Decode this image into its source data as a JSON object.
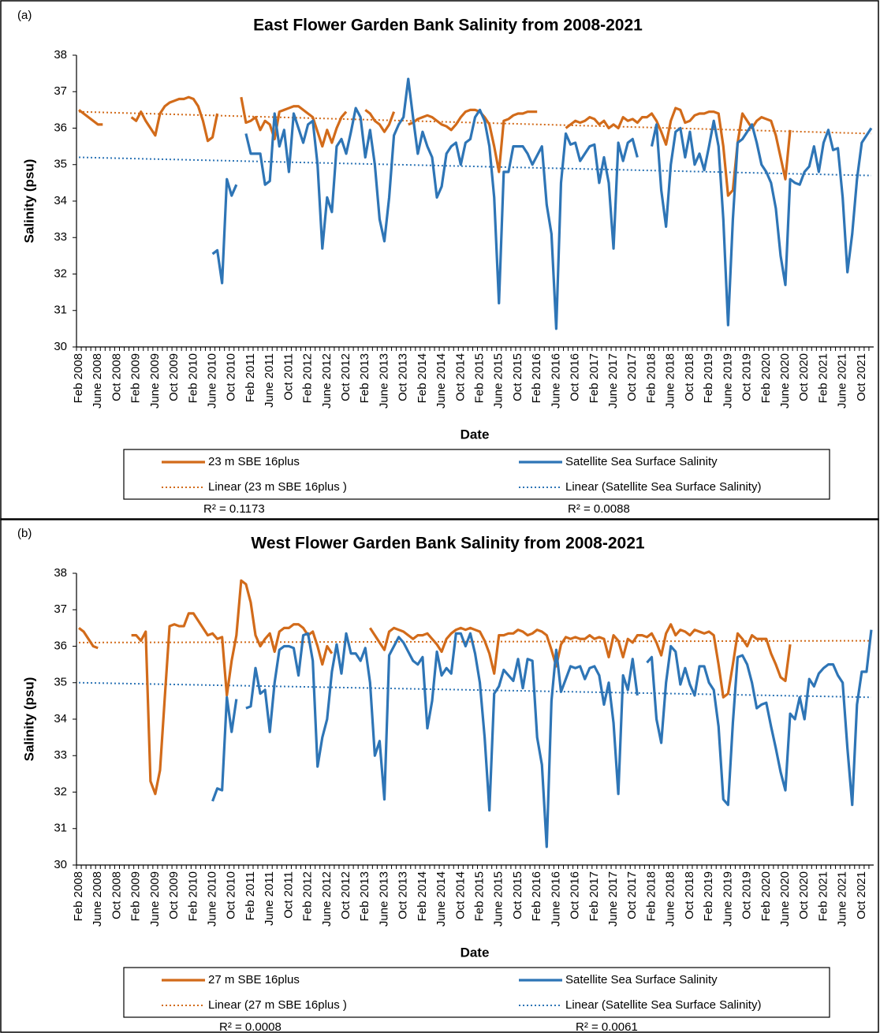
{
  "chart_data": [
    {
      "type": "line",
      "panel_label": "(a)",
      "title": "East Flower Garden Bank Salinity from 2008-2021",
      "x_label": "Date",
      "y_label": "Salinity (psu)",
      "ylim": [
        30,
        38
      ],
      "yticks": [
        30,
        31,
        32,
        33,
        34,
        35,
        36,
        37,
        38
      ],
      "categories": [
        "Feb 2008",
        null,
        null,
        null,
        "June 2008",
        null,
        null,
        null,
        "Oct 2008",
        null,
        null,
        null,
        "Feb 2009",
        null,
        null,
        null,
        "June 2009",
        null,
        null,
        null,
        "Oct 2009",
        null,
        null,
        null,
        "Feb 2010",
        null,
        null,
        null,
        "June 2010",
        null,
        null,
        null,
        "Oct 2010",
        null,
        null,
        null,
        "Feb 2011",
        null,
        null,
        null,
        "June 2011",
        null,
        null,
        null,
        "Oct 2011",
        null,
        null,
        null,
        "Feb 2012",
        null,
        null,
        null,
        "June 2012",
        null,
        null,
        null,
        "Oct 2012",
        null,
        null,
        null,
        "Feb 2013",
        null,
        null,
        null,
        "June 2013",
        null,
        null,
        null,
        "Oct 2013",
        null,
        null,
        null,
        "Feb 2014",
        null,
        null,
        null,
        "June 2014",
        null,
        null,
        null,
        "Oct 2014",
        null,
        null,
        null,
        "Feb 2015",
        null,
        null,
        null,
        "June 2015",
        null,
        null,
        null,
        "Oct 2015",
        null,
        null,
        null,
        "Feb 2016",
        null,
        null,
        null,
        "June 2016",
        null,
        null,
        null,
        "Oct 2016",
        null,
        null,
        null,
        "Feb 2017",
        null,
        null,
        null,
        "June 2017",
        null,
        null,
        null,
        "Oct 2017",
        null,
        null,
        null,
        "Feb 2018",
        null,
        null,
        null,
        "June 2018",
        null,
        null,
        null,
        "Oct 2018",
        null,
        null,
        null,
        "Feb 2019",
        null,
        null,
        null,
        "June 2019",
        null,
        null,
        null,
        "Oct 2019",
        null,
        null,
        null,
        "Feb 2020",
        null,
        null,
        null,
        "June 2020",
        null,
        null,
        null,
        "Oct 2020",
        null,
        null,
        null,
        "Feb 2021",
        null,
        null,
        null,
        "June 2021",
        null,
        null,
        null,
        "Oct 2021",
        null,
        null
      ],
      "series": [
        {
          "name": "23 m SBE 16plus",
          "color": "#d26b1a",
          "values": [
            36.5,
            36.4,
            36.3,
            36.2,
            36.1,
            36.1,
            null,
            null,
            null,
            null,
            null,
            36.3,
            36.2,
            36.45,
            36.2,
            36.0,
            35.8,
            36.4,
            36.6,
            36.7,
            36.75,
            36.8,
            36.8,
            36.85,
            36.8,
            36.6,
            36.2,
            35.65,
            35.75,
            36.4,
            null,
            null,
            null,
            null,
            36.85,
            36.15,
            36.2,
            36.3,
            35.95,
            36.2,
            36.1,
            35.7,
            36.45,
            36.5,
            36.55,
            36.6,
            36.6,
            36.5,
            36.4,
            36.3,
            35.9,
            35.5,
            35.95,
            35.6,
            36.0,
            36.3,
            36.45,
            null,
            null,
            null,
            36.5,
            36.4,
            36.2,
            36.1,
            35.9,
            36.1,
            36.45,
            null,
            null,
            36.1,
            36.15,
            36.25,
            36.3,
            36.35,
            36.3,
            36.2,
            36.1,
            36.05,
            35.95,
            36.1,
            36.3,
            36.45,
            36.5,
            36.5,
            36.45,
            36.3,
            36.1,
            35.5,
            34.8,
            36.2,
            36.25,
            36.35,
            36.4,
            36.4,
            36.45,
            36.45,
            36.45,
            null,
            null,
            null,
            null,
            null,
            36.0,
            36.1,
            36.2,
            36.15,
            36.2,
            36.3,
            36.25,
            36.1,
            36.2,
            36.0,
            36.1,
            36.0,
            36.3,
            36.2,
            36.25,
            36.15,
            36.3,
            36.3,
            36.4,
            36.2,
            35.9,
            35.55,
            36.2,
            36.55,
            36.5,
            36.15,
            36.2,
            36.35,
            36.4,
            36.4,
            36.45,
            36.45,
            36.4,
            35.5,
            34.15,
            34.3,
            35.6,
            36.4,
            36.2,
            36.0,
            36.2,
            36.3,
            36.25,
            36.2,
            35.8,
            35.2,
            34.6,
            35.95,
            null,
            null,
            null,
            null,
            null,
            null,
            null,
            null,
            null,
            null,
            null,
            null,
            null,
            null,
            null,
            null,
            null
          ]
        },
        {
          "name": "Satellite Sea Surface Salinity",
          "color": "#2e75b6",
          "values": [
            null,
            null,
            null,
            null,
            null,
            null,
            null,
            null,
            null,
            null,
            null,
            null,
            null,
            null,
            null,
            null,
            null,
            null,
            null,
            null,
            null,
            null,
            null,
            null,
            null,
            null,
            null,
            null,
            32.55,
            32.65,
            31.75,
            34.6,
            34.15,
            34.45,
            null,
            35.85,
            35.3,
            35.3,
            35.3,
            34.45,
            34.55,
            36.4,
            35.5,
            35.95,
            34.8,
            36.4,
            36.0,
            35.6,
            36.1,
            36.2,
            35.0,
            32.7,
            34.1,
            33.7,
            35.5,
            35.7,
            35.3,
            35.9,
            36.55,
            36.3,
            35.2,
            35.95,
            35.0,
            33.5,
            32.9,
            34.1,
            35.8,
            36.1,
            36.3,
            37.35,
            36.3,
            35.3,
            35.9,
            35.5,
            35.2,
            34.1,
            34.4,
            35.3,
            35.5,
            35.6,
            35.0,
            35.6,
            35.7,
            36.3,
            36.5,
            36.2,
            35.5,
            34.1,
            31.2,
            34.8,
            34.8,
            35.5,
            35.5,
            35.5,
            35.3,
            35.0,
            35.25,
            35.5,
            33.9,
            33.1,
            30.5,
            34.5,
            35.85,
            35.55,
            35.6,
            35.1,
            35.3,
            35.5,
            35.55,
            34.5,
            35.2,
            34.5,
            32.7,
            35.6,
            35.1,
            35.6,
            35.7,
            35.2,
            null,
            null,
            35.5,
            36.1,
            34.3,
            33.3,
            35.0,
            35.9,
            36.0,
            35.2,
            35.9,
            35.0,
            35.3,
            34.85,
            35.5,
            36.2,
            35.5,
            33.5,
            30.6,
            33.5,
            35.6,
            35.7,
            35.9,
            36.1,
            35.6,
            35.0,
            34.8,
            34.5,
            33.8,
            32.5,
            31.7,
            34.6,
            34.5,
            34.45,
            34.8,
            34.95,
            35.5,
            34.8,
            35.6,
            35.95,
            35.4,
            35.45,
            34.1,
            32.05,
            33.1,
            34.6,
            35.6,
            35.8,
            36.0
          ]
        }
      ],
      "trendlines": [
        {
          "name": "Linear (23 m SBE 16plus )",
          "color": "#d26b1a",
          "start": 36.45,
          "end": 35.85,
          "r2": "R² = 0.1173"
        },
        {
          "name": "Linear (Satellite Sea Surface Salinity)",
          "color": "#2e75b6",
          "start": 35.2,
          "end": 34.7,
          "r2": "R² = 0.0088"
        }
      ]
    },
    {
      "type": "line",
      "panel_label": "(b)",
      "title": "West Flower Garden Bank Salinity from 2008-2021",
      "x_label": "Date",
      "y_label": "Salinity (psu)",
      "ylim": [
        30,
        38
      ],
      "yticks": [
        30,
        31,
        32,
        33,
        34,
        35,
        36,
        37,
        38
      ],
      "categories": [
        "Feb 2008",
        null,
        null,
        null,
        "June 2008",
        null,
        null,
        null,
        "Oct 2008",
        null,
        null,
        null,
        "Feb 2009",
        null,
        null,
        null,
        "June 2009",
        null,
        null,
        null,
        "Oct 2009",
        null,
        null,
        null,
        "Feb 2010",
        null,
        null,
        null,
        "June 2010",
        null,
        null,
        null,
        "Oct 2010",
        null,
        null,
        null,
        "Feb 2011",
        null,
        null,
        null,
        "June 2011",
        null,
        null,
        null,
        "Oct 2011",
        null,
        null,
        null,
        "Feb 2012",
        null,
        null,
        null,
        "June 2012",
        null,
        null,
        null,
        "Oct 2012",
        null,
        null,
        null,
        "Feb 2013",
        null,
        null,
        null,
        "June 2013",
        null,
        null,
        null,
        "Oct 2013",
        null,
        null,
        null,
        "Feb 2014",
        null,
        null,
        null,
        "June 2014",
        null,
        null,
        null,
        "Oct 2014",
        null,
        null,
        null,
        "Feb 2015",
        null,
        null,
        null,
        "June 2015",
        null,
        null,
        null,
        "Oct 2015",
        null,
        null,
        null,
        "Feb 2016",
        null,
        null,
        null,
        "June 2016",
        null,
        null,
        null,
        "Oct 2016",
        null,
        null,
        null,
        "Feb 2017",
        null,
        null,
        null,
        "June 2017",
        null,
        null,
        null,
        "Oct 2017",
        null,
        null,
        null,
        "Feb 2018",
        null,
        null,
        null,
        "June 2018",
        null,
        null,
        null,
        "Oct 2018",
        null,
        null,
        null,
        "Feb 2019",
        null,
        null,
        null,
        "June 2019",
        null,
        null,
        null,
        "Oct 2019",
        null,
        null,
        null,
        "Feb 2020",
        null,
        null,
        null,
        "June 2020",
        null,
        null,
        null,
        "Oct 2020",
        null,
        null,
        null,
        "Feb 2021",
        null,
        null,
        null,
        "June 2021",
        null,
        null,
        null,
        "Oct 2021",
        null,
        null
      ],
      "series": [
        {
          "name": "27 m SBE 16plus",
          "color": "#d26b1a",
          "values": [
            36.5,
            36.4,
            36.2,
            36.0,
            35.95,
            null,
            null,
            null,
            null,
            null,
            null,
            36.3,
            36.3,
            36.15,
            36.4,
            32.3,
            31.95,
            32.6,
            34.6,
            36.55,
            36.6,
            36.55,
            36.55,
            36.9,
            36.9,
            36.7,
            36.5,
            36.3,
            36.35,
            36.2,
            36.25,
            34.65,
            35.6,
            36.3,
            37.8,
            37.7,
            37.2,
            36.3,
            36.0,
            36.2,
            36.35,
            35.85,
            36.4,
            36.5,
            36.5,
            36.6,
            36.6,
            36.5,
            36.3,
            36.4,
            36.0,
            35.5,
            36.0,
            35.8,
            null,
            null,
            null,
            null,
            null,
            null,
            null,
            36.5,
            36.3,
            36.1,
            35.9,
            36.4,
            36.5,
            36.45,
            36.4,
            36.3,
            36.2,
            36.3,
            36.3,
            36.35,
            36.2,
            36.05,
            35.85,
            36.2,
            36.35,
            36.45,
            36.5,
            36.45,
            36.5,
            36.45,
            36.4,
            36.15,
            35.8,
            35.25,
            36.3,
            36.3,
            36.35,
            36.35,
            36.45,
            36.4,
            36.3,
            36.35,
            36.45,
            36.4,
            36.3,
            35.9,
            35.45,
            36.05,
            36.25,
            36.2,
            36.25,
            36.2,
            36.2,
            36.3,
            36.2,
            36.25,
            36.2,
            35.7,
            36.3,
            36.15,
            35.7,
            36.2,
            36.1,
            36.3,
            36.3,
            36.25,
            36.35,
            36.1,
            35.75,
            36.35,
            36.6,
            36.3,
            36.45,
            36.4,
            36.3,
            36.45,
            36.4,
            36.35,
            36.4,
            36.3,
            35.5,
            34.6,
            34.7,
            35.5,
            36.35,
            36.2,
            36.0,
            36.3,
            36.2,
            36.2,
            36.2,
            35.8,
            35.5,
            35.15,
            35.05,
            36.05,
            null,
            null,
            null,
            null,
            null,
            null,
            null,
            null,
            null,
            null,
            null,
            null,
            null,
            null,
            null,
            null,
            null
          ]
        },
        {
          "name": "Satellite Sea Surface Salinity",
          "color": "#2e75b6",
          "values": [
            null,
            null,
            null,
            null,
            null,
            null,
            null,
            null,
            null,
            null,
            null,
            null,
            null,
            null,
            null,
            null,
            null,
            null,
            null,
            null,
            null,
            null,
            null,
            null,
            null,
            null,
            null,
            null,
            31.75,
            32.1,
            32.05,
            34.6,
            33.65,
            34.55,
            null,
            34.3,
            34.35,
            35.4,
            34.7,
            34.8,
            33.65,
            35.0,
            35.9,
            36.0,
            36.0,
            35.95,
            35.2,
            36.3,
            36.35,
            35.6,
            32.7,
            33.5,
            34.0,
            35.3,
            36.05,
            35.25,
            36.35,
            35.8,
            35.8,
            35.6,
            35.95,
            35.0,
            33.0,
            33.4,
            31.8,
            35.75,
            36.0,
            36.25,
            36.1,
            35.85,
            35.6,
            35.5,
            35.7,
            33.75,
            34.5,
            35.85,
            35.2,
            35.4,
            35.25,
            36.35,
            36.35,
            36.0,
            36.35,
            35.8,
            35.0,
            33.5,
            31.5,
            34.7,
            34.9,
            35.35,
            35.2,
            35.05,
            35.65,
            34.85,
            35.65,
            35.6,
            33.5,
            32.75,
            30.5,
            34.5,
            35.9,
            34.75,
            35.1,
            35.45,
            35.4,
            35.45,
            35.1,
            35.4,
            35.45,
            35.2,
            34.4,
            35.0,
            33.9,
            31.95,
            35.2,
            34.8,
            35.65,
            34.65,
            null,
            35.55,
            35.7,
            34.0,
            33.35,
            35.0,
            36.0,
            35.85,
            34.95,
            35.4,
            34.95,
            34.65,
            35.45,
            35.45,
            35.0,
            34.8,
            33.8,
            31.8,
            31.65,
            33.9,
            35.7,
            35.75,
            35.5,
            35.0,
            34.3,
            34.4,
            34.45,
            33.8,
            33.2,
            32.55,
            32.05,
            34.15,
            34.0,
            34.6,
            34.0,
            35.1,
            34.9,
            35.25,
            35.4,
            35.5,
            35.5,
            35.2,
            35.0,
            33.2,
            31.65,
            34.4,
            35.3,
            35.3,
            36.45
          ]
        }
      ],
      "trendlines": [
        {
          "name": "Linear (27 m SBE 16plus )",
          "color": "#d26b1a",
          "start": 36.1,
          "end": 36.15,
          "r2": "R² = 0.0008"
        },
        {
          "name": "Linear (Satellite Sea Surface Salinity)",
          "color": "#2e75b6",
          "start": 35.0,
          "end": 34.6,
          "r2": "R² = 0.0061"
        }
      ]
    }
  ]
}
